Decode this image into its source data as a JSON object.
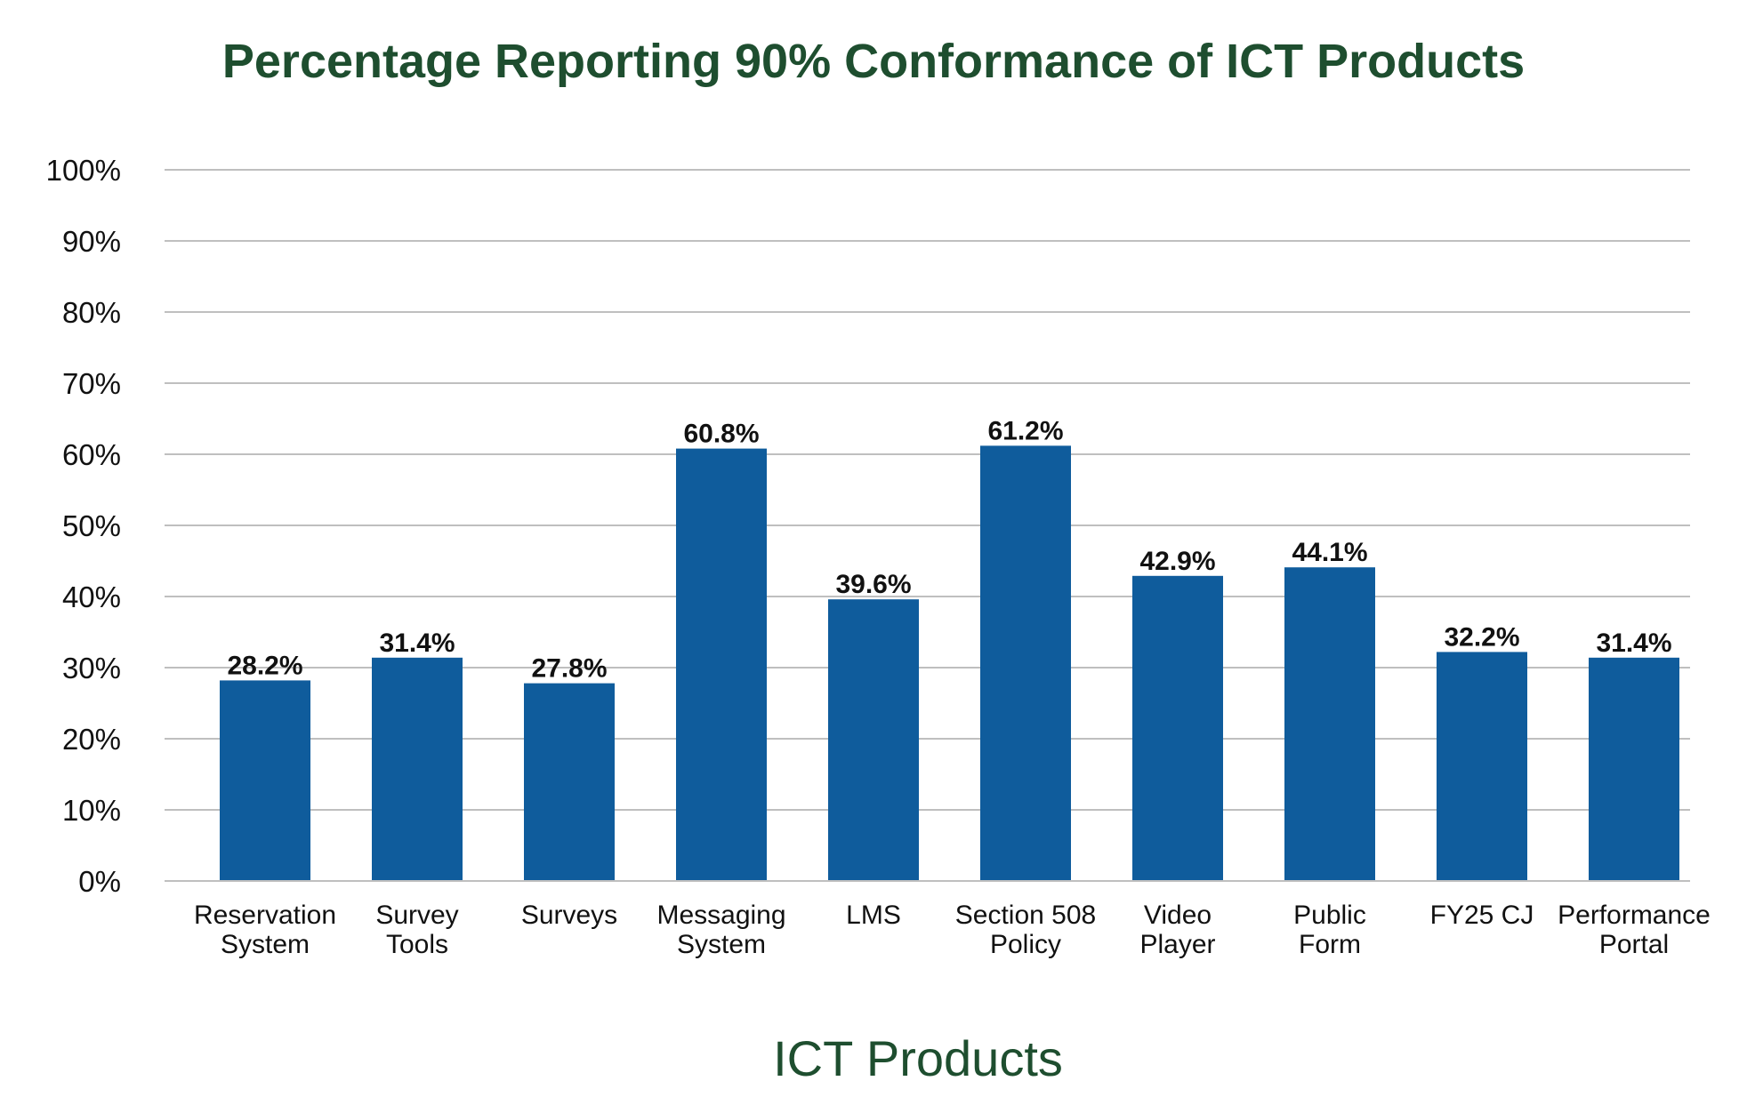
{
  "chart_data": {
    "type": "bar",
    "title": "Percentage Reporting 90% Conformance of ICT Products",
    "xlabel": "ICT Products",
    "ylabel": "",
    "ylim": [
      0,
      100
    ],
    "yticks": [
      "0%",
      "10%",
      "20%",
      "30%",
      "40%",
      "50%",
      "60%",
      "70%",
      "80%",
      "90%",
      "100%"
    ],
    "categories": [
      [
        "Reservation",
        "System"
      ],
      [
        "Survey",
        "Tools"
      ],
      [
        "Surveys"
      ],
      [
        "Messaging",
        "System"
      ],
      [
        "LMS"
      ],
      [
        "Section 508",
        "Policy"
      ],
      [
        "Video",
        "Player"
      ],
      [
        "Public",
        "Form"
      ],
      [
        "FY25 CJ"
      ],
      [
        "Performance",
        "Portal"
      ]
    ],
    "values": [
      28.2,
      31.4,
      27.8,
      60.8,
      39.6,
      61.2,
      42.9,
      44.1,
      32.2,
      31.4
    ],
    "data_labels": [
      "28.2%",
      "31.4%",
      "27.8%",
      "60.8%",
      "39.6%",
      "61.2%",
      "42.9%",
      "44.1%",
      "32.2%",
      "31.4%"
    ],
    "bar_color": "#0f5c9c",
    "grid": true,
    "grid_color": "#bfbfbf",
    "legend": "none"
  }
}
